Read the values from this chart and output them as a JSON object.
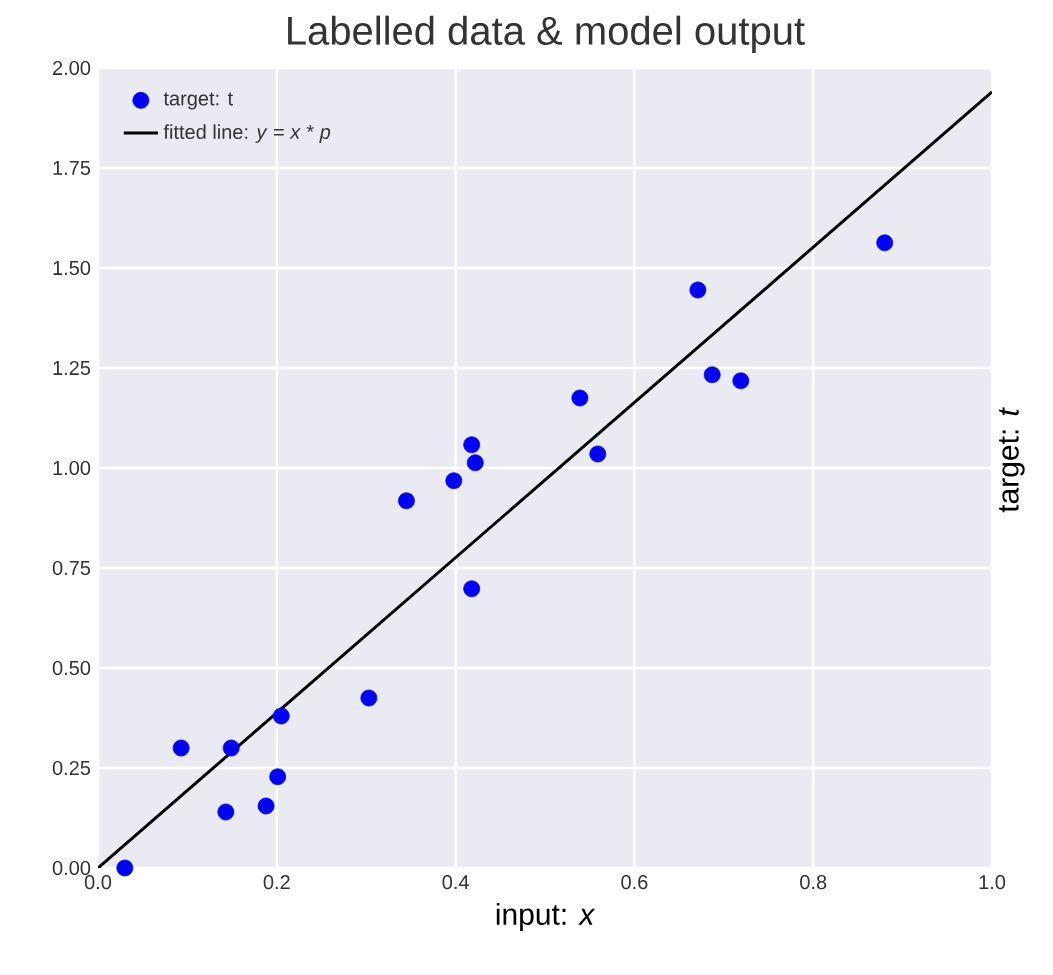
{
  "chart_data": {
    "type": "scatter",
    "title": "Labelled data & model output",
    "xlabel": "input: *x*",
    "ylabel": "target: *t*",
    "xlim": [
      0,
      1
    ],
    "ylim": [
      0,
      2
    ],
    "xticks": [
      {
        "value": 0,
        "label": "0.0"
      },
      {
        "value": 0.2,
        "label": "0.2"
      },
      {
        "value": 0.4,
        "label": "0.4"
      },
      {
        "value": 0.6,
        "label": "0.6"
      },
      {
        "value": 0.8,
        "label": "0.8"
      },
      {
        "value": 1,
        "label": "1.0"
      }
    ],
    "yticks": [
      {
        "value": 0,
        "label": "0.00"
      },
      {
        "value": 0.25,
        "label": "0.25"
      },
      {
        "value": 0.5,
        "label": "0.50"
      },
      {
        "value": 0.75,
        "label": "0.75"
      },
      {
        "value": 1,
        "label": "1.00"
      },
      {
        "value": 1.25,
        "label": "1.25"
      },
      {
        "value": 1.5,
        "label": "1.50"
      },
      {
        "value": 1.75,
        "label": "1.75"
      },
      {
        "value": 2,
        "label": "2.00"
      }
    ],
    "grid": true,
    "legend": "top left",
    "series": [
      {
        "name": "target: t",
        "marker": "circle",
        "color": "#0000ff",
        "x": [
          0.03,
          0.093,
          0.149,
          0.143,
          0.188,
          0.201,
          0.205,
          0.303,
          0.345,
          0.398,
          0.418,
          0.422,
          0.418,
          0.539,
          0.559,
          0.671,
          0.687,
          0.719,
          0.88
        ],
        "values": [
          0.0,
          0.3,
          0.3,
          0.14,
          0.155,
          0.228,
          0.38,
          0.425,
          0.918,
          0.968,
          1.058,
          1.013,
          0.698,
          1.175,
          1.035,
          1.445,
          1.233,
          1.218,
          1.563
        ]
      },
      {
        "name": "fitted line: *y* = *x* * *p*",
        "type": "line",
        "marker": "none",
        "line_style": "solid",
        "color": "#000000",
        "x": [
          0,
          1
        ],
        "values": [
          0,
          1.94
        ]
      }
    ]
  }
}
